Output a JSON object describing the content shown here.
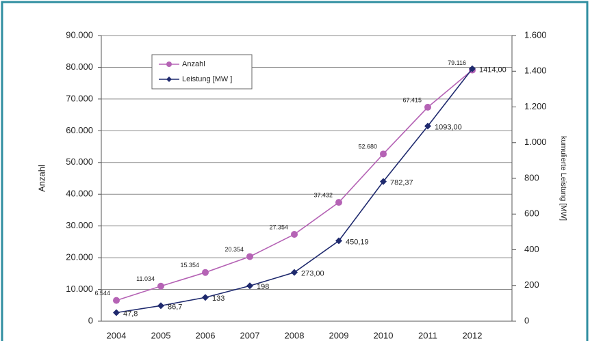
{
  "chart_data": {
    "type": "line",
    "categories": [
      "2004",
      "2005",
      "2006",
      "2007",
      "2008",
      "2009",
      "2010",
      "2011",
      "2012"
    ],
    "y_label": "Anzahl",
    "y2_label": "kumulierte Leistung [MW]",
    "ylim": [
      0,
      90000
    ],
    "yticks": [
      0,
      {
        "value": 10000,
        "label": "10.000"
      },
      {
        "value": 20000,
        "label": "20.000"
      },
      {
        "value": 30000,
        "label": "30.000"
      },
      {
        "value": 40000,
        "label": "40.000"
      },
      {
        "value": 50000,
        "label": "50.000"
      },
      {
        "value": 60000,
        "label": "60.000"
      },
      {
        "value": 70000,
        "label": "70.000"
      },
      {
        "value": 80000,
        "label": "80.000"
      },
      {
        "value": 90000,
        "label": "90.000"
      }
    ],
    "y2lim": [
      0,
      1600
    ],
    "y2ticks": [
      0,
      200,
      400,
      600,
      800,
      {
        "value": 1000,
        "label": "1.000"
      },
      {
        "value": 1200,
        "label": "1.200"
      },
      {
        "value": 1400,
        "label": "1.400"
      },
      {
        "value": 1600,
        "label": "1.600"
      }
    ],
    "grid": true,
    "legend": "upper left",
    "series": [
      {
        "name": "Anzahl",
        "color": "#b563b5",
        "marker": "circle",
        "values": [
          6544,
          11034,
          15354,
          20354,
          27354,
          37432,
          52680,
          67415,
          79116
        ],
        "value_labels": [
          "6.544",
          "11.034",
          "15.354",
          "20.354",
          "27.354",
          "37.432",
          "52.680",
          "67.415",
          "79.116"
        ]
      },
      {
        "name": "Leistung [MW ]",
        "color": "#1f2a6e",
        "marker": "diamond",
        "axis": "y2",
        "values": [
          47.8,
          86.7,
          133,
          198,
          273.0,
          450.19,
          782.37,
          1093.0,
          1414.0
        ],
        "value_labels": [
          "47,8",
          "86,7",
          "133",
          "198",
          "273,00",
          "450,19",
          "782,37",
          "1093,00",
          "1414,00"
        ]
      }
    ]
  }
}
